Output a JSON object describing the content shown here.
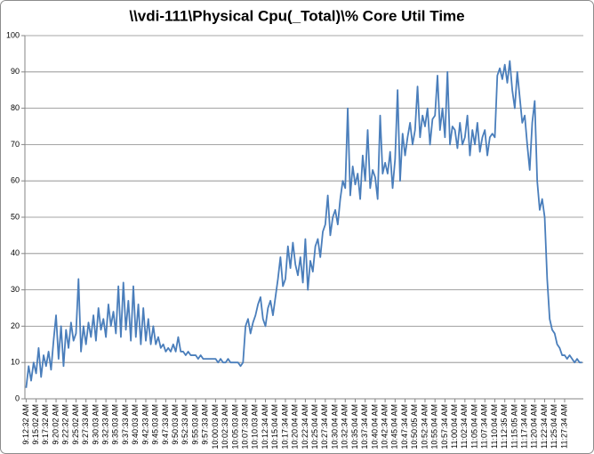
{
  "chart_data": {
    "type": "line",
    "title": "\\\\vdi-111\\Physical Cpu(_Total)\\% Core Util Time",
    "categories": [
      "9:12:32 AM",
      null,
      null,
      null,
      "9:15:02 AM",
      null,
      null,
      null,
      "9:17:32 AM",
      null,
      null,
      null,
      "9:20:02 AM",
      null,
      null,
      null,
      "9:22:32 AM",
      null,
      null,
      null,
      "9:25:02 AM",
      null,
      null,
      null,
      "9:27:33 AM",
      null,
      null,
      null,
      "9:30:03 AM",
      null,
      null,
      null,
      "9:32:33 AM",
      null,
      null,
      null,
      "9:35:03 AM",
      null,
      null,
      null,
      "9:37:33 AM",
      null,
      null,
      null,
      "9:40:03 AM",
      null,
      null,
      null,
      "9:42:33 AM",
      null,
      null,
      null,
      "9:45:03 AM",
      null,
      null,
      null,
      "9:47:33 AM",
      null,
      null,
      null,
      "9:50:03 AM",
      null,
      null,
      null,
      "9:52:33 AM",
      null,
      null,
      null,
      "9:55:03 AM",
      null,
      null,
      null,
      "9:57:33 AM",
      null,
      null,
      null,
      "10:00:03 AM",
      null,
      null,
      null,
      "10:02:33 AM",
      null,
      null,
      null,
      "10:05:03 AM",
      null,
      null,
      null,
      "10:07:33 AM",
      null,
      null,
      null,
      "10:10:03 AM",
      null,
      null,
      null,
      "10:12:34 AM",
      null,
      null,
      null,
      "10:15:04 AM",
      null,
      null,
      null,
      "10:17:34 AM",
      null,
      null,
      null,
      "10:20:04 AM",
      null,
      null,
      null,
      "10:22:34 AM",
      null,
      null,
      null,
      "10:25:04 AM",
      null,
      null,
      null,
      "10:27:34 AM",
      null,
      null,
      null,
      "10:30:04 AM",
      null,
      null,
      null,
      "10:32:34 AM",
      null,
      null,
      null,
      "10:35:04 AM",
      null,
      null,
      null,
      "10:37:34 AM",
      null,
      null,
      null,
      "10:40:04 AM",
      null,
      null,
      null,
      "10:42:34 AM",
      null,
      null,
      null,
      "10:45:04 AM",
      null,
      null,
      null,
      "10:47:34 AM",
      null,
      null,
      null,
      "10:50:05 AM",
      null,
      null,
      null,
      "10:52:34 AM",
      null,
      null,
      null,
      "10:55:04 AM",
      null,
      null,
      null,
      "10:57:34 AM",
      null,
      null,
      null,
      "11:00:04 AM",
      null,
      null,
      null,
      "11:02:34 AM",
      null,
      null,
      null,
      "11:05:04 AM",
      null,
      null,
      null,
      "11:07:34 AM",
      null,
      null,
      null,
      "11:10:04 AM",
      null,
      null,
      null,
      "11:12:35 AM",
      null,
      null,
      null,
      "11:15:05 AM",
      null,
      null,
      null,
      "11:17:34 AM",
      null,
      null,
      null,
      "11:20:04 AM",
      null,
      null,
      null,
      "11:22:34 AM",
      null,
      null,
      null,
      "11:25:04 AM",
      null,
      null,
      null,
      "11:27:34 AM",
      null,
      null,
      null,
      null,
      null,
      null,
      null
    ],
    "values": [
      3,
      9,
      5,
      10,
      7,
      14,
      6,
      12,
      9,
      13,
      8,
      16,
      23,
      11,
      20,
      9,
      19,
      14,
      21,
      16,
      18,
      33,
      13,
      20,
      15,
      21,
      17,
      23,
      16,
      25,
      19,
      22,
      17,
      26,
      20,
      24,
      18,
      31,
      17,
      32,
      19,
      27,
      16,
      31,
      17,
      26,
      15,
      25,
      16,
      22,
      15,
      20,
      15,
      17,
      14,
      15,
      13,
      14,
      13,
      15,
      13,
      17,
      13,
      13,
      12,
      13,
      12,
      12,
      12,
      11,
      12,
      11,
      11,
      11,
      11,
      11,
      11,
      10,
      11,
      10,
      10,
      11,
      10,
      10,
      10,
      10,
      9,
      10,
      20,
      22,
      18,
      21,
      23,
      26,
      28,
      22,
      20,
      25,
      27,
      23,
      28,
      33,
      39,
      31,
      33,
      42,
      36,
      43,
      37,
      34,
      39,
      32,
      44,
      30,
      38,
      35,
      42,
      44,
      39,
      46,
      48,
      56,
      45,
      50,
      52,
      48,
      55,
      60,
      58,
      80,
      56,
      64,
      59,
      62,
      55,
      67,
      60,
      74,
      58,
      63,
      61,
      55,
      78,
      62,
      65,
      62,
      68,
      58,
      66,
      85,
      60,
      73,
      67,
      72,
      76,
      70,
      74,
      86,
      72,
      78,
      75,
      80,
      70,
      77,
      78,
      89,
      74,
      80,
      72,
      90,
      70,
      75,
      74,
      69,
      76,
      70,
      72,
      78,
      67,
      74,
      70,
      76,
      68,
      72,
      74,
      67,
      72,
      73,
      72,
      89,
      91,
      88,
      92,
      87,
      93,
      85,
      80,
      90,
      83,
      76,
      78,
      70,
      63,
      76,
      82,
      60,
      52,
      55,
      50,
      33,
      22,
      19,
      18,
      15,
      14,
      12,
      12,
      11,
      12,
      11,
      10,
      11,
      10,
      10
    ],
    "color": "#4a7ebb",
    "ylim": [
      0,
      100
    ],
    "yticks": [
      0,
      10,
      20,
      30,
      40,
      50,
      60,
      70,
      80,
      90,
      100
    ],
    "grid": true
  }
}
